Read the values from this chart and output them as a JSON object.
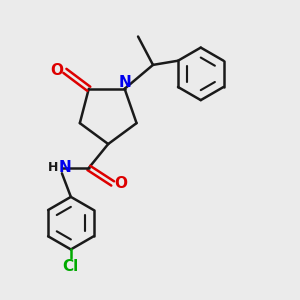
{
  "bg_color": "#ebebeb",
  "bond_color": "#1a1a1a",
  "N_color": "#0000ee",
  "O_color": "#dd0000",
  "Cl_color": "#00aa00",
  "line_width": 1.8,
  "figsize": [
    3.0,
    3.0
  ],
  "dpi": 100,
  "xlim": [
    0,
    10
  ],
  "ylim": [
    0,
    10
  ]
}
